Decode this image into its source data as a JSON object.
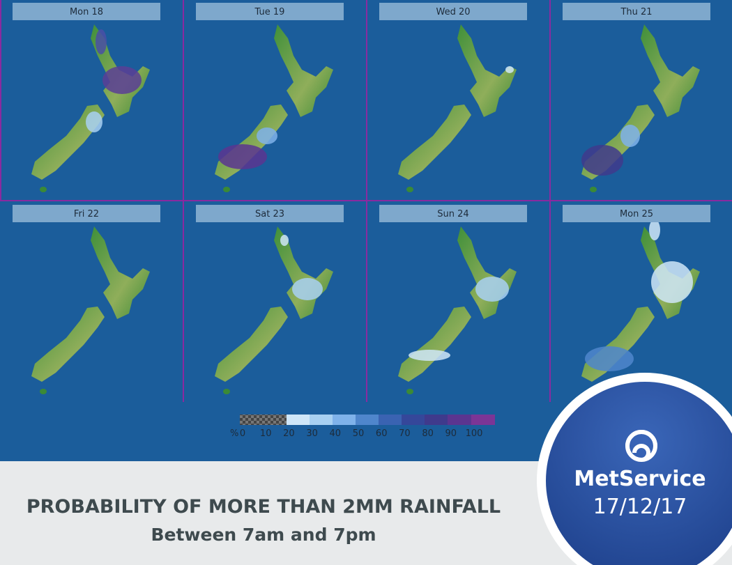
{
  "panels": [
    {
      "title": "Mon 18"
    },
    {
      "title": "Tue 19"
    },
    {
      "title": "Wed 20"
    },
    {
      "title": "Thu 21"
    },
    {
      "title": "Fri 22"
    },
    {
      "title": "Sat 23"
    },
    {
      "title": "Sun 24"
    },
    {
      "title": "Mon 25"
    }
  ],
  "legend": {
    "unit": "%",
    "labels": [
      "0",
      "10",
      "20",
      "30",
      "40",
      "50",
      "60",
      "70",
      "80",
      "90",
      "100"
    ]
  },
  "caption": {
    "title": "PROBABILITY OF MORE THAN 2MM RAINFALL",
    "subtitle": "Between 7am and 7pm"
  },
  "brand": {
    "name": "MetService",
    "date": "17/12/17"
  }
}
